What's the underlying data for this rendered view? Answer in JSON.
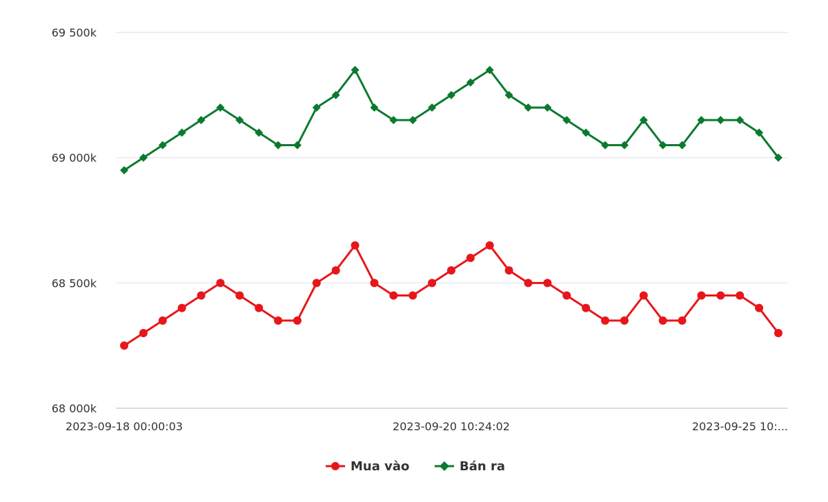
{
  "chart_data": {
    "type": "line",
    "x_labels_shown": [
      "2023-09-18 00:00:03",
      "2023-09-20 10:24:02",
      "2023-09-25 10:..."
    ],
    "y_ticks": [
      "68 000k",
      "68 500k",
      "69 000k",
      "69 500k"
    ],
    "ylim": [
      68000,
      69500
    ],
    "grid": true,
    "legend_position": "bottom-center",
    "series": [
      {
        "name": "Mua vào",
        "color": "#e8161b",
        "marker": "circle",
        "values": [
          68250,
          68300,
          68350,
          68400,
          68450,
          68500,
          68450,
          68400,
          68350,
          68350,
          68500,
          68550,
          68650,
          68500,
          68450,
          68450,
          68500,
          68550,
          68600,
          68650,
          68550,
          68500,
          68500,
          68450,
          68400,
          68350,
          68350,
          68450,
          68350,
          68350,
          68450,
          68450,
          68450,
          68400,
          68300
        ]
      },
      {
        "name": "Bán ra",
        "color": "#0b7a2e",
        "marker": "diamond",
        "values": [
          68950,
          69000,
          69050,
          69100,
          69150,
          69200,
          69150,
          69100,
          69050,
          69050,
          69200,
          69250,
          69350,
          69200,
          69150,
          69150,
          69200,
          69250,
          69300,
          69350,
          69250,
          69200,
          69200,
          69150,
          69100,
          69050,
          69050,
          69150,
          69050,
          69050,
          69150,
          69150,
          69150,
          69100,
          69000
        ]
      }
    ]
  },
  "legend": {
    "items": [
      {
        "label": "Mua vào",
        "color": "#e8161b",
        "icon": "circle-marker-icon"
      },
      {
        "label": "Bán ra",
        "color": "#0b7a2e",
        "icon": "diamond-marker-icon"
      }
    ]
  }
}
